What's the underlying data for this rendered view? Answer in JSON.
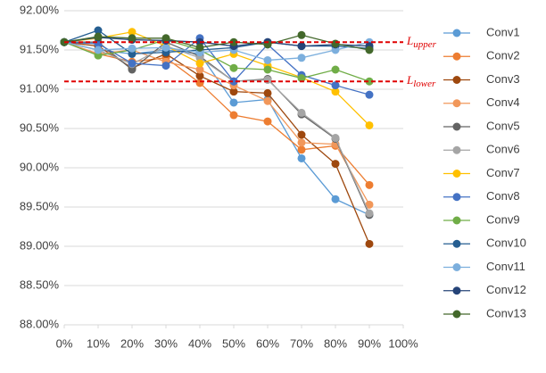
{
  "chart_data": {
    "type": "line",
    "x": [
      0,
      10,
      20,
      30,
      40,
      50,
      60,
      70,
      80,
      90
    ],
    "xlim": [
      0,
      100
    ],
    "xticks": [
      {
        "value": 0,
        "label": "0%"
      },
      {
        "value": 10,
        "label": "10%"
      },
      {
        "value": 20,
        "label": "20%"
      },
      {
        "value": 30,
        "label": "30%"
      },
      {
        "value": 40,
        "label": "40%"
      },
      {
        "value": 50,
        "label": "50%"
      },
      {
        "value": 60,
        "label": "60%"
      },
      {
        "value": 70,
        "label": "70%"
      },
      {
        "value": 80,
        "label": "80%"
      },
      {
        "value": 90,
        "label": "90%"
      },
      {
        "value": 100,
        "label": "100%"
      }
    ],
    "ylim": [
      88,
      92
    ],
    "yticks": [
      {
        "value": 88,
        "label": "88.00%"
      },
      {
        "value": 88.5,
        "label": "88.50%"
      },
      {
        "value": 89,
        "label": "89.00%"
      },
      {
        "value": 89.5,
        "label": "89.50%"
      },
      {
        "value": 90,
        "label": "90.00%"
      },
      {
        "value": 90.5,
        "label": "90.50%"
      },
      {
        "value": 91,
        "label": "91.00%"
      },
      {
        "value": 91.5,
        "label": "91.50%"
      },
      {
        "value": 92,
        "label": "92.00%"
      }
    ],
    "grid": true,
    "legend": "right",
    "series": [
      {
        "name": "Conv1",
        "color": "#5b9bd5",
        "values": [
          91.6,
          91.5,
          91.45,
          91.5,
          91.45,
          90.83,
          90.87,
          90.12,
          89.6,
          89.4
        ]
      },
      {
        "name": "Conv2",
        "color": "#ed7d31",
        "values": [
          91.6,
          91.45,
          91.35,
          91.4,
          91.08,
          90.67,
          90.59,
          90.23,
          90.28,
          89.78
        ]
      },
      {
        "name": "Conv3",
        "color": "#9e480e",
        "values": [
          91.6,
          91.55,
          91.27,
          91.45,
          91.17,
          90.97,
          90.95,
          90.42,
          90.05,
          89.03
        ]
      },
      {
        "name": "Conv4",
        "color": "#f1975a",
        "values": [
          91.6,
          91.45,
          91.5,
          91.35,
          91.25,
          91.05,
          90.85,
          90.32,
          90.3,
          89.53
        ]
      },
      {
        "name": "Conv5",
        "color": "#636363",
        "values": [
          91.6,
          91.6,
          91.25,
          91.6,
          91.42,
          91.1,
          91.13,
          90.68,
          90.37,
          89.4
        ]
      },
      {
        "name": "Conv6",
        "color": "#a5a5a5",
        "values": [
          91.6,
          91.5,
          91.32,
          91.55,
          91.4,
          91.1,
          91.12,
          90.7,
          90.38,
          89.42
        ]
      },
      {
        "name": "Conv7",
        "color": "#ffc000",
        "values": [
          91.6,
          91.65,
          91.73,
          91.55,
          91.33,
          91.45,
          91.3,
          91.15,
          90.97,
          90.54
        ]
      },
      {
        "name": "Conv8",
        "color": "#4472c4",
        "values": [
          91.6,
          91.58,
          91.33,
          91.3,
          91.65,
          91.1,
          91.57,
          91.18,
          91.05,
          90.93
        ]
      },
      {
        "name": "Conv9",
        "color": "#70ad47",
        "values": [
          91.6,
          91.43,
          91.5,
          91.63,
          91.5,
          91.27,
          91.25,
          91.14,
          91.25,
          91.1
        ]
      },
      {
        "name": "Conv10",
        "color": "#255e91",
        "values": [
          91.6,
          91.75,
          91.45,
          91.47,
          91.5,
          91.53,
          91.6,
          91.55,
          91.55,
          91.52
        ]
      },
      {
        "name": "Conv11",
        "color": "#7cafdd",
        "values": [
          91.6,
          91.5,
          91.52,
          91.53,
          91.47,
          91.5,
          91.37,
          91.4,
          91.5,
          91.6
        ]
      },
      {
        "name": "Conv12",
        "color": "#264478",
        "values": [
          91.6,
          91.66,
          91.63,
          91.62,
          91.6,
          91.55,
          91.6,
          91.55,
          91.57,
          91.55
        ]
      },
      {
        "name": "Conv13",
        "color": "#43682b",
        "values": [
          91.6,
          91.67,
          91.65,
          91.65,
          91.53,
          91.6,
          91.57,
          91.69,
          91.58,
          91.5
        ]
      }
    ],
    "annotations": [
      {
        "label": "L",
        "subscript": "upper",
        "value": 91.6,
        "color": "#e00000"
      },
      {
        "label": "L",
        "subscript": "lower",
        "value": 91.1,
        "color": "#e00000"
      }
    ]
  }
}
